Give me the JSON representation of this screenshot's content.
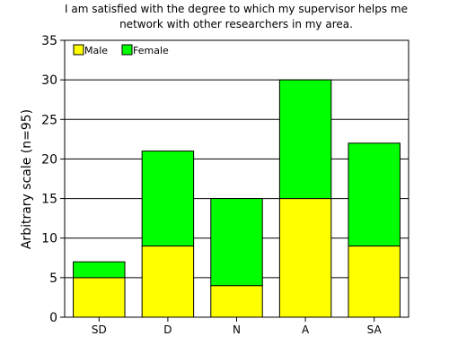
{
  "chart_data": {
    "type": "bar",
    "stacked": true,
    "title_lines": [
      "I am satisfied with the degree to which my supervisor helps me",
      "network with other researchers in my area."
    ],
    "xlabel": "",
    "ylabel": "Arbitrary scale (n=95)",
    "categories": [
      "SD",
      "D",
      "N",
      "A",
      "SA"
    ],
    "series": [
      {
        "name": "Male",
        "color": "#ffff00",
        "values": [
          5,
          9,
          4,
          15,
          9
        ]
      },
      {
        "name": "Female",
        "color": "#00ff00",
        "values": [
          2,
          12,
          11,
          15,
          13
        ]
      }
    ],
    "ylim": [
      0,
      35
    ],
    "yticks": [
      0,
      5,
      10,
      15,
      20,
      25,
      30,
      35
    ],
    "grid": true,
    "legend_position": "top-left"
  }
}
